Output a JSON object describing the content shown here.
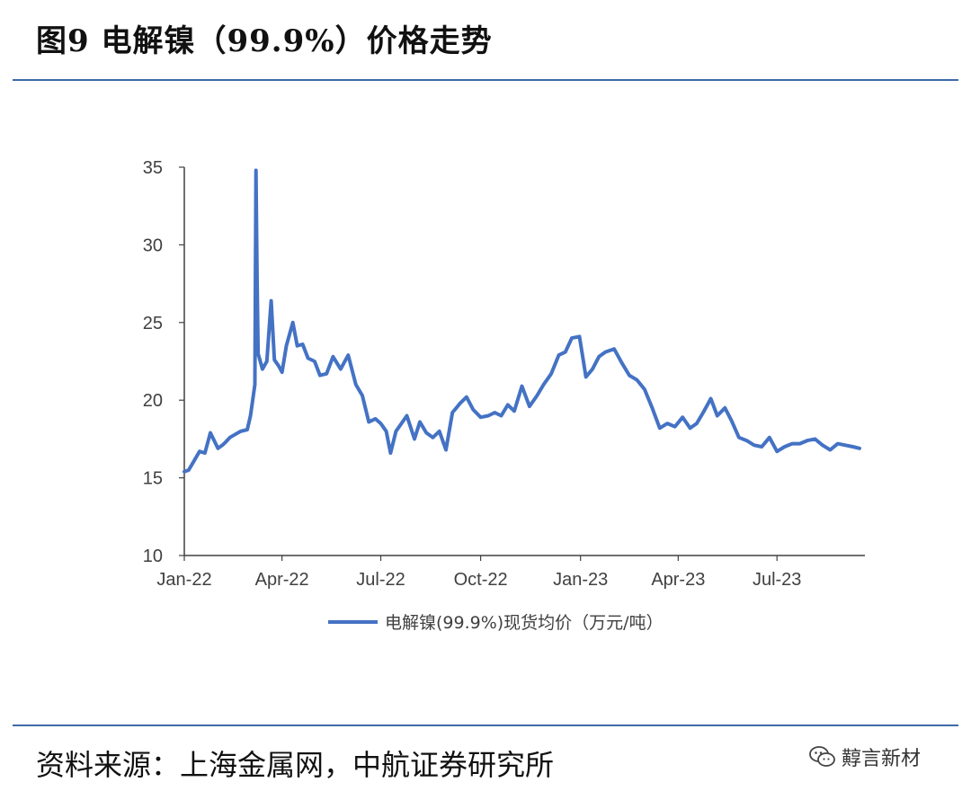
{
  "header": {
    "title": "图9 电解镍（99.9%）价格走势"
  },
  "footer": {
    "source": "资料来源：上海金属网，中航证券研究所",
    "watermark": "䵍言新材",
    "watermark_icon": "wechat-icon"
  },
  "colors": {
    "line": "#4472c4",
    "rule": "#3d6aa8",
    "axis": "#404040"
  },
  "chart_data": {
    "type": "line",
    "title": "",
    "xlabel": "",
    "ylabel": "",
    "ylim": [
      10,
      35
    ],
    "yticks": [
      10,
      15,
      20,
      25,
      30,
      35
    ],
    "xlim": [
      "2022-01-01",
      "2023-09-20"
    ],
    "xticks": [
      {
        "date": "2022-01-01",
        "label": "Jan-22"
      },
      {
        "date": "2022-04-01",
        "label": "Apr-22"
      },
      {
        "date": "2022-07-01",
        "label": "Jul-22"
      },
      {
        "date": "2022-10-01",
        "label": "Oct-22"
      },
      {
        "date": "2023-01-01",
        "label": "Jan-23"
      },
      {
        "date": "2023-04-01",
        "label": "Apr-23"
      },
      {
        "date": "2023-07-01",
        "label": "Jul-23"
      }
    ],
    "grid": false,
    "legend_position": "bottom",
    "series": [
      {
        "name": "电解镍(99.9%)现货均价（万元/吨）",
        "x": [
          "2022-01-01",
          "2022-01-05",
          "2022-01-10",
          "2022-01-15",
          "2022-01-20",
          "2022-01-25",
          "2022-02-01",
          "2022-02-05",
          "2022-02-08",
          "2022-02-12",
          "2022-02-17",
          "2022-02-22",
          "2022-02-28",
          "2022-03-03",
          "2022-03-07",
          "2022-03-08",
          "2022-03-09",
          "2022-03-10",
          "2022-03-14",
          "2022-03-18",
          "2022-03-22",
          "2022-03-25",
          "2022-03-29",
          "2022-04-01",
          "2022-04-05",
          "2022-04-11",
          "2022-04-15",
          "2022-04-20",
          "2022-04-25",
          "2022-05-01",
          "2022-05-06",
          "2022-05-12",
          "2022-05-18",
          "2022-05-25",
          "2022-06-01",
          "2022-06-08",
          "2022-06-14",
          "2022-06-20",
          "2022-06-26",
          "2022-07-01",
          "2022-07-06",
          "2022-07-10",
          "2022-07-15",
          "2022-07-20",
          "2022-07-25",
          "2022-08-01",
          "2022-08-06",
          "2022-08-12",
          "2022-08-18",
          "2022-08-24",
          "2022-08-30",
          "2022-09-05",
          "2022-09-12",
          "2022-09-18",
          "2022-09-24",
          "2022-10-01",
          "2022-10-08",
          "2022-10-14",
          "2022-10-20",
          "2022-10-26",
          "2022-11-01",
          "2022-11-08",
          "2022-11-15",
          "2022-11-22",
          "2022-11-28",
          "2022-12-05",
          "2022-12-12",
          "2022-12-18",
          "2022-12-24",
          "2022-12-31",
          "2023-01-06",
          "2023-01-12",
          "2023-01-18",
          "2023-01-24",
          "2023-02-01",
          "2023-02-08",
          "2023-02-15",
          "2023-02-22",
          "2023-03-01",
          "2023-03-08",
          "2023-03-15",
          "2023-03-22",
          "2023-03-29",
          "2023-04-05",
          "2023-04-12",
          "2023-04-18",
          "2023-04-24",
          "2023-05-01",
          "2023-05-07",
          "2023-05-14",
          "2023-05-20",
          "2023-05-27",
          "2023-06-03",
          "2023-06-10",
          "2023-06-17",
          "2023-06-24",
          "2023-07-01",
          "2023-07-08",
          "2023-07-15",
          "2023-07-22",
          "2023-07-29",
          "2023-08-05",
          "2023-08-12",
          "2023-08-19",
          "2023-08-26",
          "2023-09-02",
          "2023-09-09",
          "2023-09-15"
        ],
        "values": [
          15.4,
          15.5,
          16.1,
          16.7,
          16.6,
          17.9,
          16.9,
          17.1,
          17.3,
          17.6,
          17.8,
          18.0,
          18.1,
          19.0,
          21.0,
          34.8,
          28.0,
          23.0,
          22.0,
          22.5,
          26.4,
          22.6,
          22.2,
          21.8,
          23.5,
          25.0,
          23.5,
          23.6,
          22.7,
          22.5,
          21.6,
          21.7,
          22.8,
          22.0,
          22.9,
          21.0,
          20.3,
          18.6,
          18.8,
          18.5,
          18.0,
          16.6,
          18.0,
          18.5,
          19.0,
          17.5,
          18.6,
          17.9,
          17.6,
          18.0,
          16.8,
          19.2,
          19.8,
          20.2,
          19.4,
          18.9,
          19.0,
          19.2,
          19.0,
          19.7,
          19.3,
          20.9,
          19.6,
          20.3,
          21.0,
          21.7,
          22.9,
          23.1,
          24.0,
          24.1,
          21.5,
          22.0,
          22.8,
          23.1,
          23.3,
          22.4,
          21.6,
          21.3,
          20.7,
          19.5,
          18.2,
          18.5,
          18.3,
          18.9,
          18.2,
          18.5,
          19.2,
          20.1,
          19.0,
          19.5,
          18.7,
          17.6,
          17.4,
          17.1,
          17.0,
          17.6,
          16.7,
          17.0,
          17.2,
          17.2,
          17.4,
          17.5,
          17.1,
          16.8,
          17.2,
          17.1,
          17.0,
          16.9
        ]
      }
    ]
  }
}
